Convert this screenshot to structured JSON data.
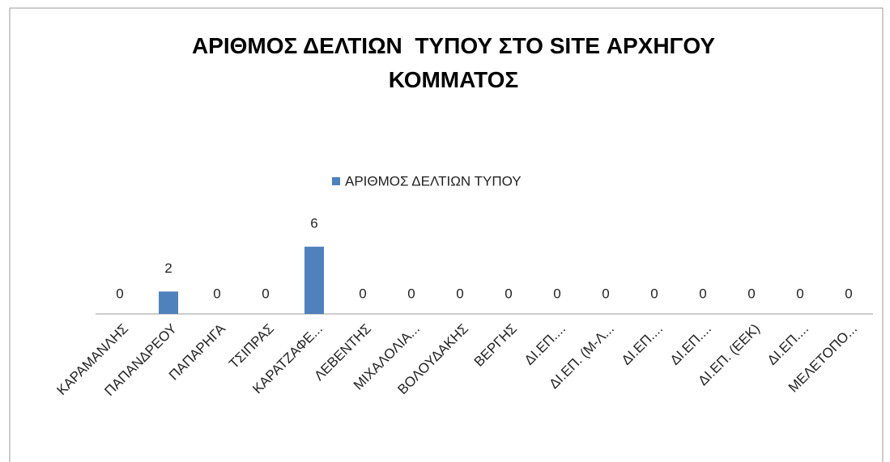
{
  "chart_data": {
    "type": "bar",
    "title": "ΑΡΙΘΜΟΣ ΔΕΛΤΙΩΝ  ΤΥΠΟΥ ΣΤΟ SITE ΑΡΧΗΓΟΥ ΚΟΜΜΑΤΟΣ",
    "categories": [
      "ΚΑΡΑΜΑΝΛΗΣ",
      "ΠΑΠΑΝΔΡΕΟΥ",
      "ΠΑΠΑΡΗΓΑ",
      "ΤΣΙΠΡΑΣ",
      "ΚΑΡΑΤΖΑΦΕ...",
      "ΛΕΒΕΝΤΗΣ",
      "ΜΙΧΑΛΟΛΙΑ...",
      "ΒΟΛΟΥΔΑΚΗΣ",
      "ΒΕΡΓΗΣ",
      "ΔΙ.ΕΠ....",
      "ΔΙ.ΕΠ. (Μ-Λ...",
      "ΔΙ.ΕΠ....",
      "ΔΙ.ΕΠ....",
      "ΔΙ.ΕΠ. (ΕΕΚ)",
      "ΔΙ.ΕΠ....",
      "ΜΕΛΕΤΟΠΟ..."
    ],
    "series": [
      {
        "name": "ΑΡΙΘΜΟΣ ΔΕΛΤΙΩΝ  ΤΥΠΟΥ",
        "color": "#4f81bd",
        "values": [
          0,
          2,
          0,
          0,
          6,
          0,
          0,
          0,
          0,
          0,
          0,
          0,
          0,
          0,
          0,
          0
        ]
      }
    ],
    "ylim": [
      0,
      7
    ],
    "legend": "top"
  }
}
